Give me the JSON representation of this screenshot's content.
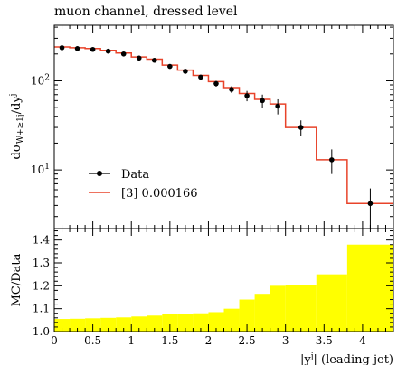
{
  "title": "muon channel, dressed level",
  "main_ylabel": "dσ_{W+≥1j}/dy^j",
  "ratio_ylabel": "MC/Data",
  "xlabel": "|y^j| (leading jet)",
  "legend": {
    "data_label": "Data",
    "mc_label": "[3] 0.000166"
  },
  "colors": {
    "mc": "#e8432a",
    "data": "#000000",
    "band": "#ffff00"
  },
  "chart_data": [
    {
      "type": "line",
      "title": "muon channel, dressed level",
      "ylabel": "dσ_{W+≥1j}/dy^j",
      "yscale": "log",
      "ylim": [
        2.2,
        420
      ],
      "xlim": [
        0,
        4.4
      ],
      "yticks": [
        {
          "v": 10,
          "label": "10^1"
        },
        {
          "v": 100,
          "label": "10^2"
        }
      ],
      "legend_position": "center-left",
      "bin_edges": [
        0,
        0.2,
        0.4,
        0.6,
        0.8,
        1.0,
        1.2,
        1.4,
        1.6,
        1.8,
        2.0,
        2.2,
        2.4,
        2.6,
        2.8,
        3.0,
        3.4,
        3.8,
        4.4
      ],
      "series": [
        {
          "name": "Data",
          "x": [
            0.1,
            0.3,
            0.5,
            0.7,
            0.9,
            1.1,
            1.3,
            1.5,
            1.7,
            1.9,
            2.1,
            2.3,
            2.5,
            2.7,
            2.9,
            3.2,
            3.6,
            4.1
          ],
          "y": [
            235,
            230,
            225,
            215,
            200,
            180,
            170,
            145,
            128,
            110,
            93,
            80,
            68,
            60,
            52,
            30,
            13,
            4.2
          ],
          "yerr": [
            10,
            10,
            10,
            10,
            10,
            9,
            9,
            8,
            8,
            7,
            7,
            7,
            9,
            10,
            10,
            6,
            4,
            2
          ]
        },
        {
          "name": "[3] 0.000166",
          "values": [
            240,
            235,
            230,
            220,
            205,
            185,
            175,
            150,
            132,
            115,
            98,
            84,
            72,
            62,
            55,
            30,
            13,
            4.2
          ]
        }
      ]
    },
    {
      "type": "area",
      "ylabel": "MC/Data",
      "ylim": [
        1.0,
        1.45
      ],
      "xlim": [
        0,
        4.4
      ],
      "yticks": [
        1.0,
        1.1,
        1.2,
        1.3,
        1.4
      ],
      "xticks": [
        0,
        0.5,
        1,
        1.5,
        2,
        2.5,
        3,
        3.5,
        4
      ],
      "xlabel": "|y^j| (leading jet)",
      "bin_edges": [
        0,
        0.2,
        0.4,
        0.6,
        0.8,
        1.0,
        1.2,
        1.4,
        1.6,
        1.8,
        2.0,
        2.2,
        2.4,
        2.6,
        2.8,
        3.0,
        3.4,
        3.8,
        4.4
      ],
      "band_upper": [
        1.055,
        1.056,
        1.058,
        1.06,
        1.062,
        1.066,
        1.07,
        1.075,
        1.075,
        1.08,
        1.085,
        1.1,
        1.14,
        1.165,
        1.2,
        1.205,
        1.25,
        1.38
      ]
    }
  ]
}
